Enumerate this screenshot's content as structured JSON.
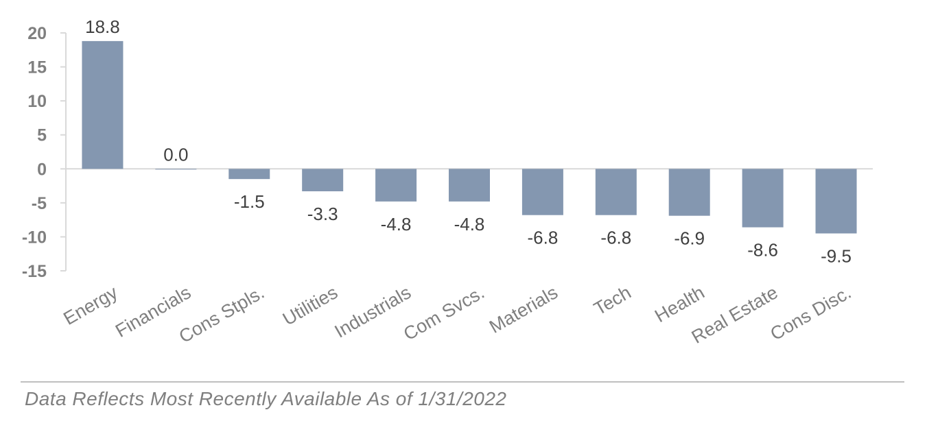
{
  "chart_data": {
    "type": "bar",
    "categories": [
      "Energy",
      "Financials",
      "Cons Stpls.",
      "Utilities",
      "Industrials",
      "Com Svcs.",
      "Materials",
      "Tech",
      "Health",
      "Real Estate",
      "Cons Disc."
    ],
    "values": [
      18.8,
      0.0,
      -1.5,
      -3.3,
      -4.8,
      -4.8,
      -6.8,
      -6.8,
      -6.9,
      -8.6,
      -9.5
    ],
    "data_labels": [
      "18.8",
      "0.0",
      "-1.5",
      "-3.3",
      "-4.8",
      "-4.8",
      "-6.8",
      "-6.8",
      "-6.9",
      "-8.6",
      "-9.5"
    ],
    "y_ticks": [
      20,
      15,
      10,
      5,
      0,
      -5,
      -10,
      -15
    ],
    "ylim": [
      -15,
      20
    ],
    "title": "",
    "xlabel": "",
    "ylabel": "",
    "grid": false,
    "legend": "none",
    "bar_color": "#8497b0"
  },
  "footnote": "Data Reflects Most Recently Available As of 1/31/2022"
}
